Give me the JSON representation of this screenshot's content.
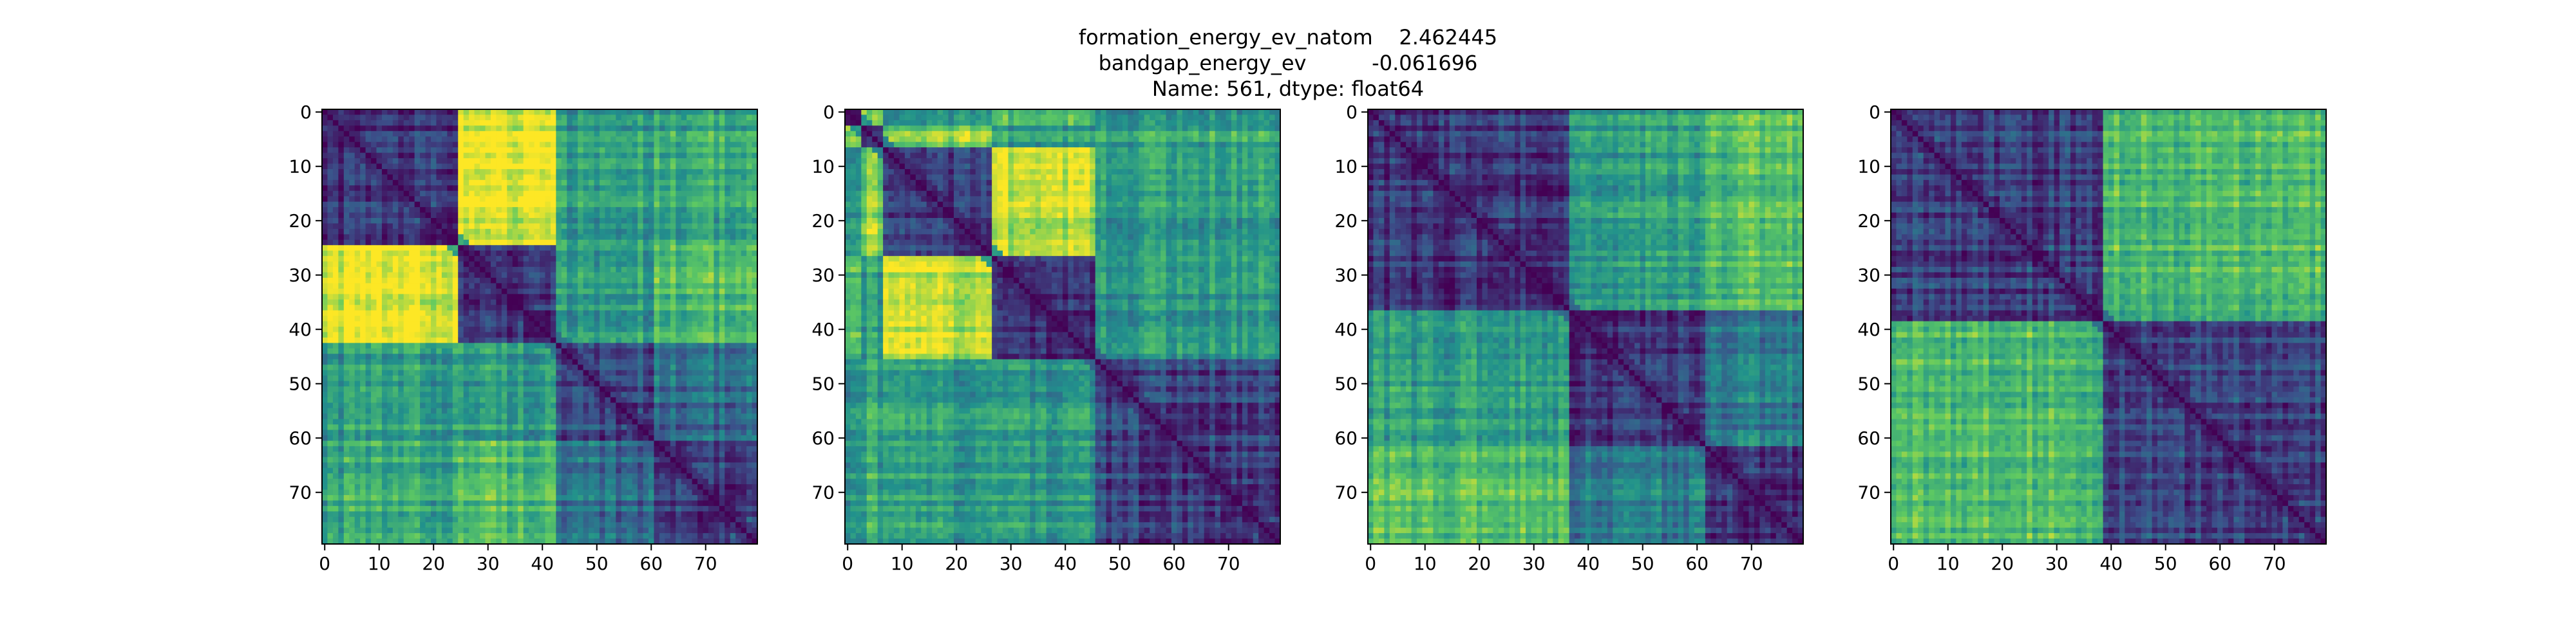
{
  "figure_title": {
    "lines": [
      "formation_energy_ev_natom    2.462445",
      "bandgap_energy_ev          -0.061696",
      "Name: 561, dtype: float64"
    ]
  },
  "colormap": {
    "name": "viridis",
    "stops": [
      "#440154",
      "#3b528b",
      "#21918c",
      "#5ec962",
      "#fde725"
    ]
  },
  "chart_data": [
    {
      "type": "heatmap",
      "title": "",
      "xlabel": "",
      "ylabel": "",
      "matrix_size": 80,
      "xlim": [
        0,
        79
      ],
      "ylim": [
        79,
        0
      ],
      "x_ticks": [
        0,
        10,
        20,
        30,
        40,
        50,
        60,
        70
      ],
      "y_ticks": [
        0,
        10,
        20,
        30,
        40,
        50,
        60,
        70
      ],
      "diagonal_value": 0.0,
      "value_range": [
        0,
        1
      ],
      "blocks": [
        0,
        25,
        43,
        61,
        80
      ],
      "block_distance": [
        [
          0.15,
          0.95,
          0.55,
          0.6
        ],
        [
          0.95,
          0.15,
          0.55,
          0.7
        ],
        [
          0.55,
          0.55,
          0.2,
          0.35
        ],
        [
          0.6,
          0.7,
          0.35,
          0.2
        ]
      ]
    },
    {
      "type": "heatmap",
      "title": "",
      "xlabel": "",
      "ylabel": "",
      "matrix_size": 80,
      "xlim": [
        0,
        79
      ],
      "ylim": [
        79,
        0
      ],
      "x_ticks": [
        0,
        10,
        20,
        30,
        40,
        50,
        60,
        70
      ],
      "y_ticks": [
        0,
        10,
        20,
        30,
        40,
        50,
        60,
        70
      ],
      "diagonal_value": 0.0,
      "value_range": [
        0,
        1
      ],
      "blocks": [
        0,
        3,
        7,
        27,
        46,
        80
      ],
      "block_distance": [
        [
          0.15,
          0.85,
          0.55,
          0.75,
          0.55
        ],
        [
          0.85,
          0.2,
          0.8,
          0.55,
          0.6
        ],
        [
          0.55,
          0.8,
          0.15,
          0.9,
          0.55
        ],
        [
          0.75,
          0.55,
          0.9,
          0.15,
          0.55
        ],
        [
          0.55,
          0.6,
          0.55,
          0.55,
          0.2
        ]
      ]
    },
    {
      "type": "heatmap",
      "title": "",
      "xlabel": "",
      "ylabel": "",
      "matrix_size": 80,
      "xlim": [
        0,
        79
      ],
      "ylim": [
        79,
        0
      ],
      "x_ticks": [
        0,
        10,
        20,
        30,
        40,
        50,
        60,
        70
      ],
      "y_ticks": [
        0,
        10,
        20,
        30,
        40,
        50,
        60,
        70
      ],
      "diagonal_value": 0.0,
      "value_range": [
        0,
        1
      ],
      "blocks": [
        0,
        37,
        62,
        80
      ],
      "block_distance": [
        [
          0.15,
          0.55,
          0.7
        ],
        [
          0.55,
          0.15,
          0.4
        ],
        [
          0.7,
          0.4,
          0.15
        ]
      ]
    },
    {
      "type": "heatmap",
      "title": "",
      "xlabel": "",
      "ylabel": "",
      "matrix_size": 80,
      "xlim": [
        0,
        79
      ],
      "ylim": [
        79,
        0
      ],
      "x_ticks": [
        0,
        10,
        20,
        30,
        40,
        50,
        60,
        70
      ],
      "y_ticks": [
        0,
        10,
        20,
        30,
        40,
        50,
        60,
        70
      ],
      "diagonal_value": 0.0,
      "value_range": [
        0,
        1
      ],
      "blocks": [
        0,
        39,
        80
      ],
      "block_distance": [
        [
          0.2,
          0.7
        ],
        [
          0.7,
          0.2
        ]
      ]
    }
  ]
}
